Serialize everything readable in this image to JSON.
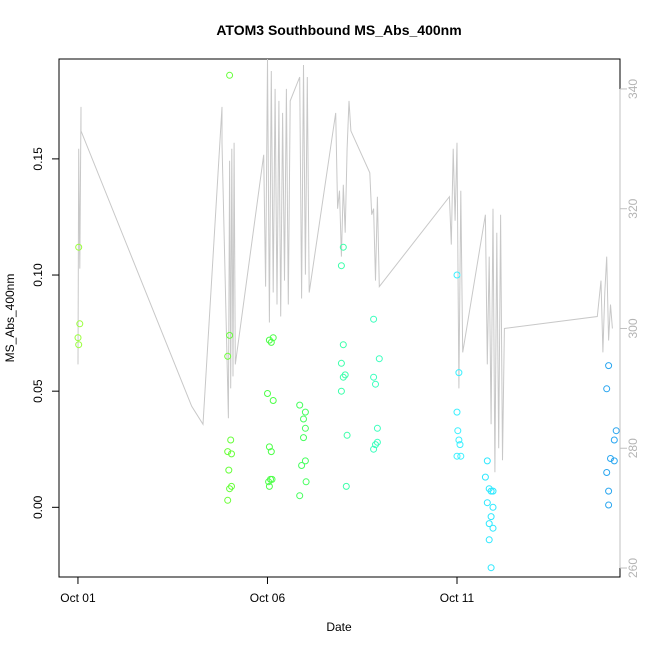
{
  "chart_data": {
    "type": "scatter",
    "title": "ATOM3 Southbound MS_Abs_400nm",
    "xlabel": "Date",
    "ylabel": "MS_Abs_400nm",
    "x_unit": "days",
    "x_ticks": [
      {
        "value": 0,
        "label": "Oct 01"
      },
      {
        "value": 5,
        "label": "Oct 06"
      },
      {
        "value": 10,
        "label": "Oct 11"
      }
    ],
    "xlim": [
      -0.5,
      14.3
    ],
    "ylim": [
      -0.03,
      0.193
    ],
    "y_ticks": [
      0.0,
      0.05,
      0.1,
      0.15
    ],
    "y_tick_labels": [
      "0.00",
      "0.05",
      "0.10",
      "0.15"
    ],
    "y2lim": [
      258.5,
      345
    ],
    "y2_ticks": [
      260,
      280,
      300,
      320,
      340
    ],
    "y2_tick_labels": [
      "260",
      "280",
      "300",
      "320",
      "340"
    ],
    "y2_color": "#c0c0c0",
    "line_color": "#c8c8c8",
    "grid": false,
    "points": [
      {
        "x": 0.02,
        "y": 0.112,
        "color": "#9aff3c"
      },
      {
        "x": 0.05,
        "y": 0.079,
        "color": "#9aff3c"
      },
      {
        "x": 0.0,
        "y": 0.073,
        "color": "#9aff3c"
      },
      {
        "x": 0.02,
        "y": 0.07,
        "color": "#9aff3c"
      },
      {
        "x": 3.95,
        "y": 0.024,
        "color": "#6dff3a"
      },
      {
        "x": 3.95,
        "y": 0.003,
        "color": "#6dff3a"
      },
      {
        "x": 3.95,
        "y": 0.065,
        "color": "#6dff3a"
      },
      {
        "x": 4.0,
        "y": 0.186,
        "color": "#66ff3a"
      },
      {
        "x": 4.0,
        "y": 0.074,
        "color": "#66ff3a"
      },
      {
        "x": 4.03,
        "y": 0.029,
        "color": "#66ff3a"
      },
      {
        "x": 4.05,
        "y": 0.023,
        "color": "#66ff3a"
      },
      {
        "x": 3.98,
        "y": 0.016,
        "color": "#66ff3a"
      },
      {
        "x": 4.05,
        "y": 0.009,
        "color": "#66ff3a"
      },
      {
        "x": 4.0,
        "y": 0.008,
        "color": "#66ff3a"
      },
      {
        "x": 5.0,
        "y": 0.049,
        "color": "#4dff48"
      },
      {
        "x": 5.05,
        "y": 0.026,
        "color": "#4dff48"
      },
      {
        "x": 5.1,
        "y": 0.024,
        "color": "#4dff48"
      },
      {
        "x": 5.08,
        "y": 0.012,
        "color": "#4dff48"
      },
      {
        "x": 5.12,
        "y": 0.012,
        "color": "#4dff48"
      },
      {
        "x": 5.03,
        "y": 0.011,
        "color": "#4dff48"
      },
      {
        "x": 5.05,
        "y": 0.009,
        "color": "#4dff48"
      },
      {
        "x": 5.15,
        "y": 0.046,
        "color": "#4dff48"
      },
      {
        "x": 5.1,
        "y": 0.071,
        "color": "#4dff48"
      },
      {
        "x": 5.15,
        "y": 0.073,
        "color": "#4dff48"
      },
      {
        "x": 5.05,
        "y": 0.072,
        "color": "#4dff48"
      },
      {
        "x": 5.85,
        "y": 0.044,
        "color": "#46ff5e"
      },
      {
        "x": 6.0,
        "y": 0.041,
        "color": "#46ff5e"
      },
      {
        "x": 5.95,
        "y": 0.038,
        "color": "#46ff5e"
      },
      {
        "x": 6.0,
        "y": 0.034,
        "color": "#46ff5e"
      },
      {
        "x": 5.95,
        "y": 0.03,
        "color": "#46ff5e"
      },
      {
        "x": 6.0,
        "y": 0.02,
        "color": "#46ff5e"
      },
      {
        "x": 5.9,
        "y": 0.018,
        "color": "#46ff5e"
      },
      {
        "x": 6.02,
        "y": 0.011,
        "color": "#46ff5e"
      },
      {
        "x": 5.85,
        "y": 0.005,
        "color": "#46ff5e"
      },
      {
        "x": 7.0,
        "y": 0.112,
        "color": "#3cffaa"
      },
      {
        "x": 6.95,
        "y": 0.104,
        "color": "#3cffaa"
      },
      {
        "x": 7.0,
        "y": 0.07,
        "color": "#3cffaa"
      },
      {
        "x": 6.95,
        "y": 0.062,
        "color": "#3cffaa"
      },
      {
        "x": 7.05,
        "y": 0.057,
        "color": "#3cffaa"
      },
      {
        "x": 7.0,
        "y": 0.056,
        "color": "#3cffaa"
      },
      {
        "x": 6.95,
        "y": 0.05,
        "color": "#3cffaa"
      },
      {
        "x": 7.1,
        "y": 0.031,
        "color": "#3cffaa"
      },
      {
        "x": 7.08,
        "y": 0.009,
        "color": "#3cffaa"
      },
      {
        "x": 7.8,
        "y": 0.081,
        "color": "#3cffbe"
      },
      {
        "x": 7.95,
        "y": 0.064,
        "color": "#3cffbe"
      },
      {
        "x": 7.8,
        "y": 0.056,
        "color": "#3cffbe"
      },
      {
        "x": 7.85,
        "y": 0.053,
        "color": "#3cffbe"
      },
      {
        "x": 7.9,
        "y": 0.034,
        "color": "#3cffbe"
      },
      {
        "x": 7.9,
        "y": 0.028,
        "color": "#3cffbe"
      },
      {
        "x": 7.85,
        "y": 0.027,
        "color": "#3cffbe"
      },
      {
        "x": 7.8,
        "y": 0.025,
        "color": "#3cffbe"
      },
      {
        "x": 10.0,
        "y": 0.1,
        "color": "#3cf0ff"
      },
      {
        "x": 10.05,
        "y": 0.058,
        "color": "#3cf0ff"
      },
      {
        "x": 10.0,
        "y": 0.041,
        "color": "#3cf0ff"
      },
      {
        "x": 10.02,
        "y": 0.033,
        "color": "#3cf0ff"
      },
      {
        "x": 10.05,
        "y": 0.029,
        "color": "#3cf0ff"
      },
      {
        "x": 10.08,
        "y": 0.027,
        "color": "#3cf0ff"
      },
      {
        "x": 10.0,
        "y": 0.022,
        "color": "#3cf0ff"
      },
      {
        "x": 10.1,
        "y": 0.022,
        "color": "#3cf0ff"
      },
      {
        "x": 10.8,
        "y": 0.02,
        "color": "#2de8ff"
      },
      {
        "x": 10.75,
        "y": 0.013,
        "color": "#2de8ff"
      },
      {
        "x": 10.85,
        "y": 0.008,
        "color": "#2de8ff"
      },
      {
        "x": 10.9,
        "y": 0.007,
        "color": "#2de8ff"
      },
      {
        "x": 10.95,
        "y": 0.007,
        "color": "#2de8ff"
      },
      {
        "x": 10.8,
        "y": 0.002,
        "color": "#2de8ff"
      },
      {
        "x": 10.95,
        "y": 0.0,
        "color": "#2de8ff"
      },
      {
        "x": 10.9,
        "y": -0.004,
        "color": "#2de8ff"
      },
      {
        "x": 10.85,
        "y": -0.007,
        "color": "#2de8ff"
      },
      {
        "x": 10.95,
        "y": -0.009,
        "color": "#2de8ff"
      },
      {
        "x": 10.85,
        "y": -0.014,
        "color": "#2de8ff"
      },
      {
        "x": 10.9,
        "y": -0.026,
        "color": "#2de8ff"
      },
      {
        "x": 14.0,
        "y": 0.061,
        "color": "#2aa6f0"
      },
      {
        "x": 13.95,
        "y": 0.051,
        "color": "#2aa6f0"
      },
      {
        "x": 14.2,
        "y": 0.033,
        "color": "#2aa6f0"
      },
      {
        "x": 14.15,
        "y": 0.029,
        "color": "#2aa6f0"
      },
      {
        "x": 14.05,
        "y": 0.021,
        "color": "#2aa6f0"
      },
      {
        "x": 14.15,
        "y": 0.02,
        "color": "#2aa6f0"
      },
      {
        "x": 13.95,
        "y": 0.015,
        "color": "#2aa6f0"
      },
      {
        "x": 14.0,
        "y": 0.007,
        "color": "#2aa6f0"
      },
      {
        "x": 14.0,
        "y": 0.001,
        "color": "#2aa6f0"
      }
    ],
    "line2": [
      [
        0.0,
        294
      ],
      [
        0.02,
        330
      ],
      [
        0.05,
        310
      ],
      [
        0.08,
        337
      ],
      [
        0.08,
        333
      ],
      [
        3.0,
        287
      ],
      [
        3.3,
        284
      ],
      [
        3.8,
        337
      ],
      [
        3.8,
        331
      ],
      [
        3.97,
        285
      ],
      [
        4.0,
        328
      ],
      [
        4.03,
        290
      ],
      [
        4.06,
        330
      ],
      [
        4.09,
        292
      ],
      [
        4.12,
        331
      ],
      [
        4.15,
        294
      ],
      [
        4.9,
        329
      ],
      [
        4.95,
        307
      ],
      [
        5.0,
        345
      ],
      [
        5.05,
        301
      ],
      [
        5.1,
        343
      ],
      [
        5.15,
        306
      ],
      [
        5.2,
        340
      ],
      [
        5.25,
        304
      ],
      [
        5.3,
        338
      ],
      [
        5.35,
        302
      ],
      [
        5.4,
        336
      ],
      [
        5.45,
        308
      ],
      [
        5.5,
        340
      ],
      [
        5.55,
        304
      ],
      [
        5.6,
        338
      ],
      [
        5.85,
        342
      ],
      [
        5.9,
        305
      ],
      [
        5.95,
        344
      ],
      [
        6.0,
        309
      ],
      [
        6.05,
        342
      ],
      [
        6.1,
        306
      ],
      [
        6.8,
        336
      ],
      [
        6.85,
        320
      ],
      [
        6.9,
        323
      ],
      [
        6.95,
        312
      ],
      [
        7.0,
        324
      ],
      [
        7.05,
        316
      ],
      [
        7.1,
        330
      ],
      [
        7.15,
        338
      ],
      [
        7.2,
        333
      ],
      [
        7.7,
        326
      ],
      [
        7.75,
        319
      ],
      [
        7.8,
        320
      ],
      [
        7.85,
        308
      ],
      [
        7.9,
        322
      ],
      [
        7.95,
        307
      ],
      [
        9.8,
        322
      ],
      [
        9.85,
        314
      ],
      [
        9.9,
        330
      ],
      [
        9.95,
        318
      ],
      [
        10.0,
        331
      ],
      [
        10.05,
        290
      ],
      [
        10.1,
        323
      ],
      [
        10.15,
        296
      ],
      [
        10.75,
        319
      ],
      [
        10.8,
        294
      ],
      [
        10.85,
        312
      ],
      [
        10.9,
        284
      ],
      [
        10.95,
        320
      ],
      [
        11.0,
        276
      ],
      [
        11.05,
        316
      ],
      [
        11.1,
        280
      ],
      [
        11.15,
        319
      ],
      [
        11.2,
        278
      ],
      [
        11.25,
        300
      ],
      [
        13.7,
        302
      ],
      [
        13.8,
        308
      ],
      [
        13.85,
        296
      ],
      [
        13.9,
        306
      ],
      [
        13.95,
        312
      ],
      [
        14.0,
        298
      ],
      [
        14.05,
        304
      ],
      [
        14.1,
        300
      ]
    ]
  }
}
